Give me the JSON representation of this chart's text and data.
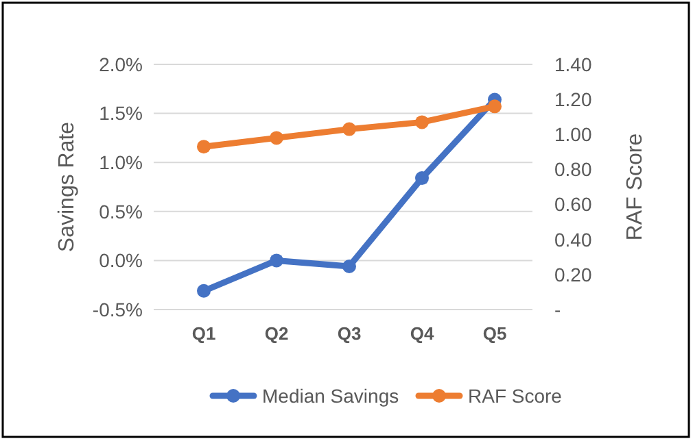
{
  "chart_data": {
    "type": "line",
    "categories": [
      "Q1",
      "Q2",
      "Q3",
      "Q4",
      "Q5"
    ],
    "series": [
      {
        "name": "Median Savings",
        "color": "#4472c4",
        "values": [
          -0.31,
          0.0,
          -0.06,
          0.84,
          1.64
        ]
      },
      {
        "name": "RAF Score",
        "color": "#ed7d31",
        "values": [
          0.93,
          0.98,
          1.03,
          1.07,
          1.16
        ],
        "axis": "y2"
      }
    ],
    "ylabel": "Savings Rate",
    "y2label": "RAF Score",
    "ylim": [
      -0.5,
      2.0
    ],
    "yticks": [
      {
        "value": -0.5,
        "label": "-0.5%"
      },
      {
        "value": 0,
        "label": "0.0%"
      },
      {
        "value": 0.5,
        "label": "0.5%"
      },
      {
        "value": 1.0,
        "label": "1.0%"
      },
      {
        "value": 1.5,
        "label": "1.5%"
      },
      {
        "value": 2.0,
        "label": "2.0%"
      }
    ],
    "y2lim": [
      0,
      1.4
    ],
    "y2ticks": [
      {
        "value": 0,
        "label": "-"
      },
      {
        "value": 0.2,
        "label": "0.20"
      },
      {
        "value": 0.4,
        "label": "0.40"
      },
      {
        "value": 0.6,
        "label": "0.60"
      },
      {
        "value": 0.8,
        "label": "0.80"
      },
      {
        "value": 1.0,
        "label": "1.00"
      },
      {
        "value": 1.2,
        "label": "1.20"
      },
      {
        "value": 1.4,
        "label": "1.40"
      }
    ],
    "grid": "y",
    "legend": "bottom",
    "marker": "circle",
    "line_style": "solid"
  }
}
